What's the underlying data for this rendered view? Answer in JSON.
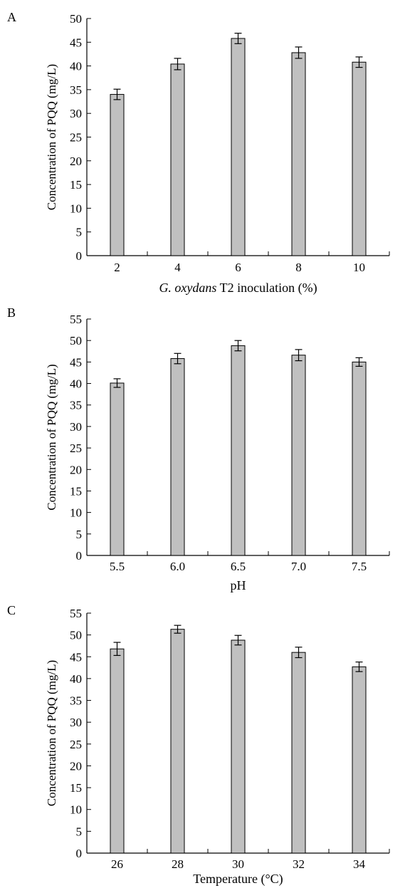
{
  "chart_data": [
    {
      "panel_label": "A",
      "type": "bar",
      "ylabel": "Concentration of PQQ (mg/L)",
      "xlabel_parts": [
        {
          "text": "G. oxydans",
          "italic": true
        },
        {
          "text": " T2 inoculation (%)",
          "italic": false
        }
      ],
      "categories": [
        "2",
        "4",
        "6",
        "8",
        "10"
      ],
      "values": [
        34.0,
        40.4,
        45.8,
        42.8,
        40.8
      ],
      "errors": [
        1.1,
        1.2,
        1.1,
        1.2,
        1.1
      ],
      "ylim": [
        0,
        50
      ],
      "yticks": [
        0,
        5,
        10,
        15,
        20,
        25,
        30,
        35,
        40,
        45,
        50
      ],
      "grid": false,
      "legend": "none"
    },
    {
      "panel_label": "B",
      "type": "bar",
      "ylabel": "Concentration of PQQ (mg/L)",
      "xlabel_parts": [
        {
          "text": "pH",
          "italic": false
        }
      ],
      "categories": [
        "5.5",
        "6.0",
        "6.5",
        "7.0",
        "7.5"
      ],
      "values": [
        40.1,
        45.8,
        48.8,
        46.6,
        45.0
      ],
      "errors": [
        1.0,
        1.2,
        1.2,
        1.3,
        1.0
      ],
      "ylim": [
        0,
        55
      ],
      "yticks": [
        0,
        5,
        10,
        15,
        20,
        25,
        30,
        35,
        40,
        45,
        50,
        55
      ],
      "grid": false,
      "legend": "none"
    },
    {
      "panel_label": "C",
      "type": "bar",
      "ylabel": "Concentration of PQQ (mg/L)",
      "xlabel_parts": [
        {
          "text": "Temperature (°C)",
          "italic": false
        }
      ],
      "categories": [
        "26",
        "28",
        "30",
        "32",
        "34"
      ],
      "values": [
        46.8,
        51.3,
        48.8,
        46.0,
        42.7
      ],
      "errors": [
        1.5,
        0.9,
        1.1,
        1.2,
        1.1
      ],
      "ylim": [
        0,
        55
      ],
      "yticks": [
        0,
        5,
        10,
        15,
        20,
        25,
        30,
        35,
        40,
        45,
        50,
        55
      ],
      "grid": false,
      "legend": "none"
    }
  ]
}
